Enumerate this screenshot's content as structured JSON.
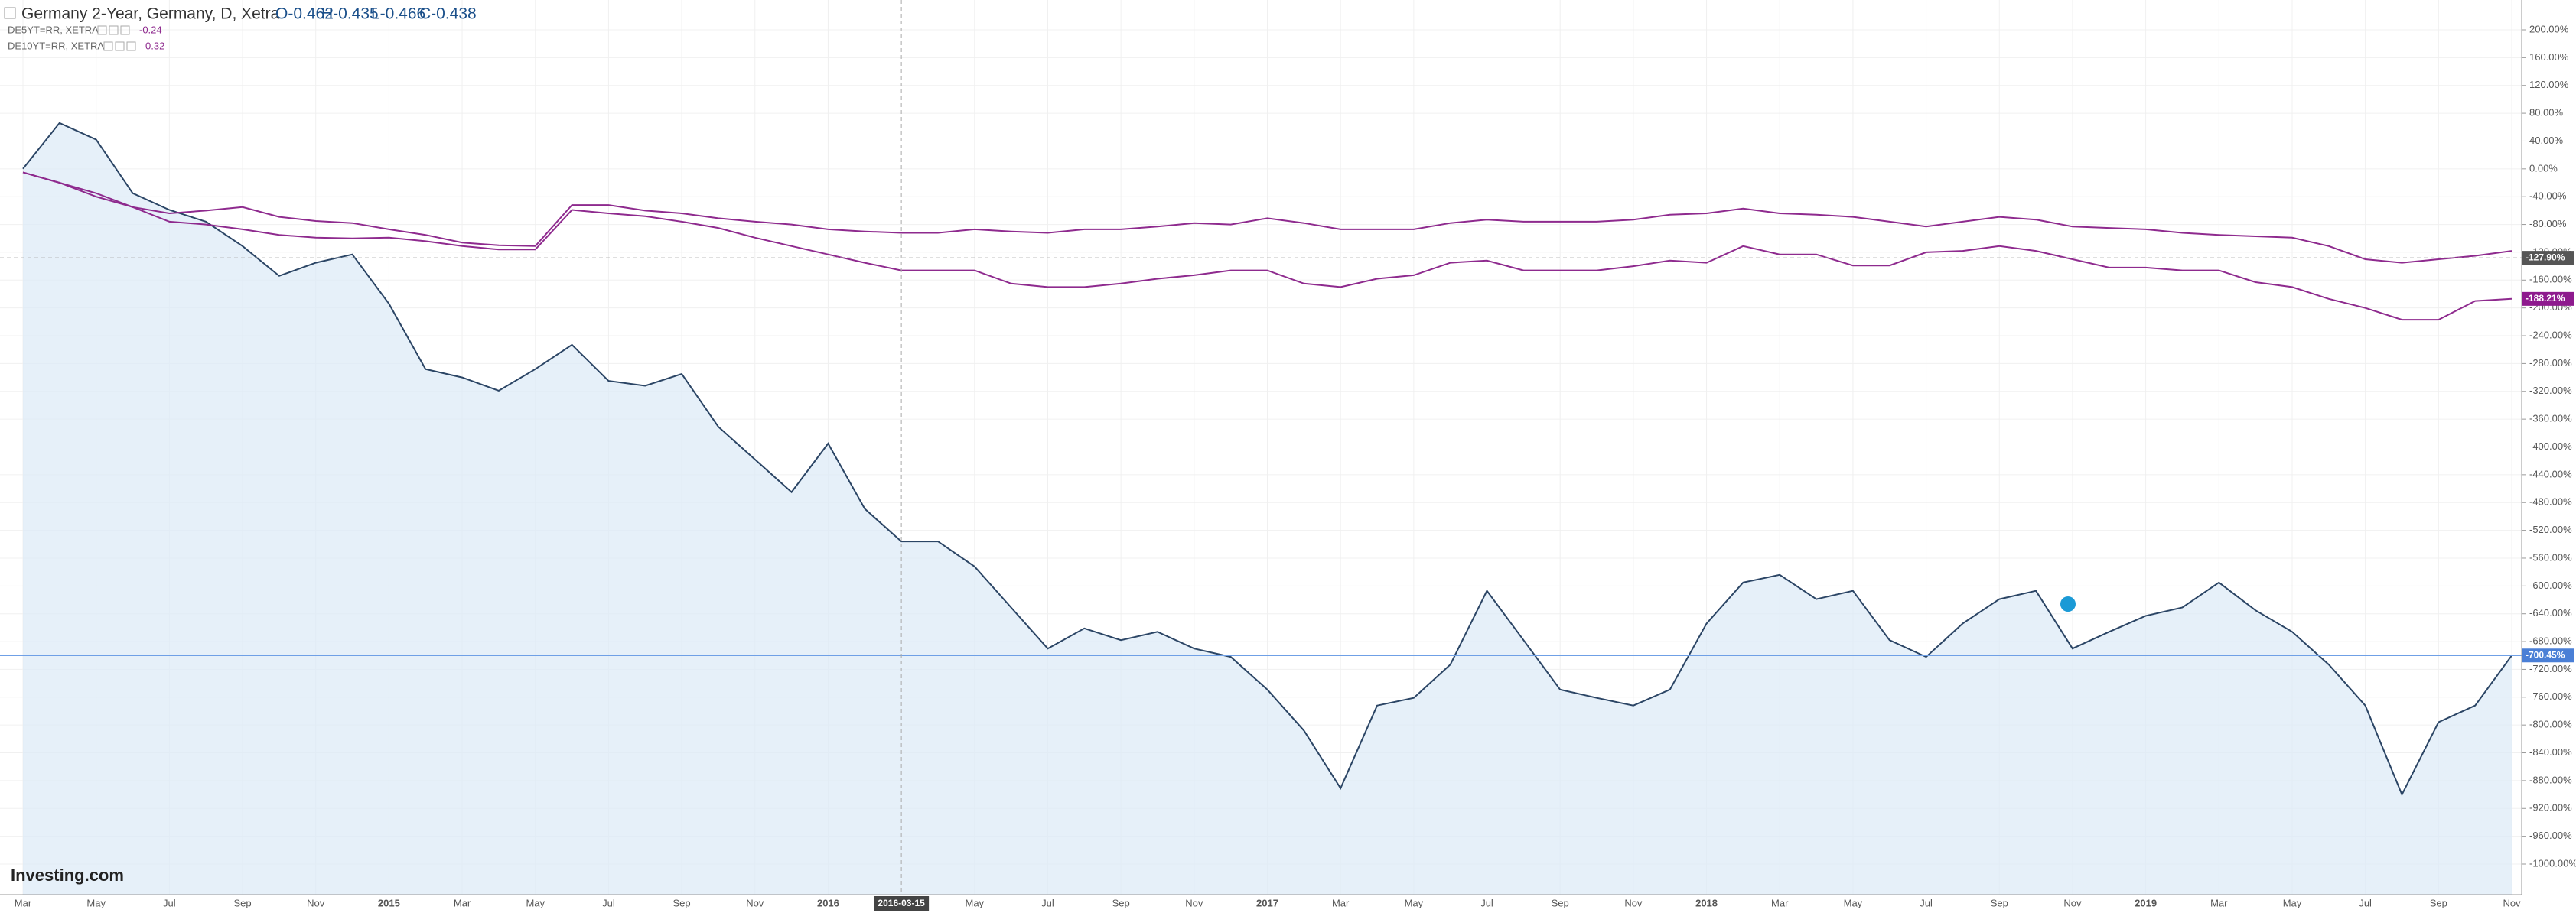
{
  "chart_data": {
    "type": "line",
    "title": "Germany 2-Year, Germany, D, Xetra",
    "ohlc": [
      "O-0.462",
      "H-0.435",
      "L-0.466",
      "C-0.438"
    ],
    "logo": "Investing.com",
    "categories": [
      "Mar",
      null,
      "May",
      null,
      "Jul",
      null,
      "Sep",
      null,
      "Nov",
      null,
      "2015",
      null,
      "Mar",
      null,
      "May",
      null,
      "Jul",
      null,
      "Sep",
      null,
      "Nov",
      null,
      "2016",
      null,
      null,
      null,
      "May",
      null,
      "Jul",
      null,
      "Sep",
      null,
      "Nov",
      null,
      "2017",
      null,
      "Mar",
      null,
      "May",
      null,
      "Jul",
      null,
      "Sep",
      null,
      "Nov",
      null,
      "2018",
      null,
      "Mar",
      null,
      "May",
      null,
      "Jul",
      null,
      "Sep",
      null,
      "Nov",
      null,
      "2019",
      null,
      "Mar",
      null,
      "May",
      null,
      "Jul",
      null,
      "Sep",
      null,
      "Nov"
    ],
    "series": [
      {
        "name": "Germany 2-Year, Germany, D, Xetra",
        "color": "#2b4565",
        "fill": "#dce9f7",
        "last_label": "-700.45%",
        "values": [
          0,
          66,
          42,
          -35,
          -59,
          -76,
          -111,
          -154,
          -135,
          -123,
          -194,
          -288,
          -300,
          -319,
          -288,
          -253,
          -305,
          -312,
          -295,
          -371,
          -418,
          -465,
          -395,
          -489,
          -536,
          -536,
          -572,
          -631,
          -690,
          -661,
          -678,
          -666,
          -690,
          -702,
          -749,
          -808,
          -891,
          -772,
          -761,
          -713,
          -607,
          -678,
          -749,
          -761,
          -772,
          -749,
          -654,
          -595,
          -584,
          -619,
          -607,
          -678,
          -702,
          -654,
          -619,
          -607,
          -690,
          -666,
          -643,
          -631,
          -595,
          -635,
          -666,
          -713,
          -772,
          -900,
          -796,
          -772,
          -700
        ]
      },
      {
        "name": "DE5YT=RR, XETRA",
        "status": "-0.24",
        "color": "#8e2a8e",
        "values": [
          -5,
          -20,
          -40,
          -55,
          -64,
          -60,
          -55,
          -69,
          -75,
          -78,
          -87,
          -95,
          -106,
          -110,
          -111,
          -52,
          -52,
          -60,
          -64,
          -71,
          -76,
          -80,
          -87,
          -90,
          -92,
          -92,
          -87,
          -90,
          -92,
          -87,
          -87,
          -83,
          -78,
          -80,
          -71,
          -78,
          -87,
          -87,
          -87,
          -78,
          -73,
          -76,
          -76,
          -76,
          -73,
          -66,
          -64,
          -57,
          -64,
          -66,
          -69,
          -76,
          -83,
          -76,
          -69,
          -73,
          -83,
          -85,
          -87,
          -92,
          -95,
          -97,
          -99,
          -111,
          -130,
          -135,
          -130,
          -125,
          -118
        ]
      },
      {
        "name": "DE10YT=RR, XETRA",
        "status": "0.32",
        "color": "#8e2a8e",
        "last_label": "-188.21%",
        "values": [
          -5,
          -20,
          -35,
          -55,
          -76,
          -80,
          -87,
          -95,
          -99,
          -100,
          -99,
          -104,
          -111,
          -116,
          -116,
          -59,
          -64,
          -68,
          -76,
          -85,
          -99,
          -111,
          -123,
          -135,
          -146,
          -146,
          -146,
          -165,
          -170,
          -170,
          -165,
          -158,
          -153,
          -146,
          -146,
          -165,
          -170,
          -158,
          -153,
          -135,
          -132,
          -146,
          -146,
          -146,
          -140,
          -132,
          -135,
          -111,
          -123,
          -123,
          -139,
          -139,
          -120,
          -118,
          -111,
          -118,
          -130,
          -142,
          -142,
          -146,
          -146,
          -163,
          -170,
          -187,
          -200,
          -217,
          -217,
          -190,
          -187
        ]
      }
    ],
    "crosshair": {
      "index": 24,
      "x_label": "2016-03-15",
      "value": -127.9,
      "label": "-127.90%"
    },
    "ylim": [
      -1000,
      200
    ],
    "yticks": [
      {
        "value": 200,
        "label": "200.00%"
      },
      {
        "value": 160,
        "label": "160.00%"
      },
      {
        "value": 120,
        "label": "120.00%"
      },
      {
        "value": 80,
        "label": "80.00%"
      },
      {
        "value": 40,
        "label": "40.00%"
      },
      {
        "value": 0,
        "label": "0.00%"
      },
      {
        "value": -40,
        "label": "-40.00%"
      },
      {
        "value": -80,
        "label": "-80.00%"
      },
      {
        "value": -120,
        "label": "-120.00%"
      },
      {
        "value": -160,
        "label": "-160.00%"
      },
      {
        "value": -200,
        "label": "-200.00%"
      },
      {
        "value": -240,
        "label": "-240.00%"
      },
      {
        "value": -280,
        "label": "-280.00%"
      },
      {
        "value": -320,
        "label": "-320.00%"
      },
      {
        "value": -360,
        "label": "-360.00%"
      },
      {
        "value": -400,
        "label": "-400.00%"
      },
      {
        "value": -440,
        "label": "-440.00%"
      },
      {
        "value": -480,
        "label": "-480.00%"
      },
      {
        "value": -520,
        "label": "-520.00%"
      },
      {
        "value": -560,
        "label": "-560.00%"
      },
      {
        "value": -600,
        "label": "-600.00%"
      },
      {
        "value": -640,
        "label": "-640.00%"
      },
      {
        "value": -680,
        "label": "-680.00%"
      },
      {
        "value": -720,
        "label": "-720.00%"
      },
      {
        "value": -760,
        "label": "-760.00%"
      },
      {
        "value": -800,
        "label": "-800.00%"
      },
      {
        "value": -840,
        "label": "-840.00%"
      },
      {
        "value": -880,
        "label": "-880.00%"
      },
      {
        "value": -920,
        "label": "-920.00%"
      },
      {
        "value": -960,
        "label": "-960.00%"
      },
      {
        "value": -1000,
        "label": "-1000.00%"
      }
    ],
    "grid": true
  }
}
